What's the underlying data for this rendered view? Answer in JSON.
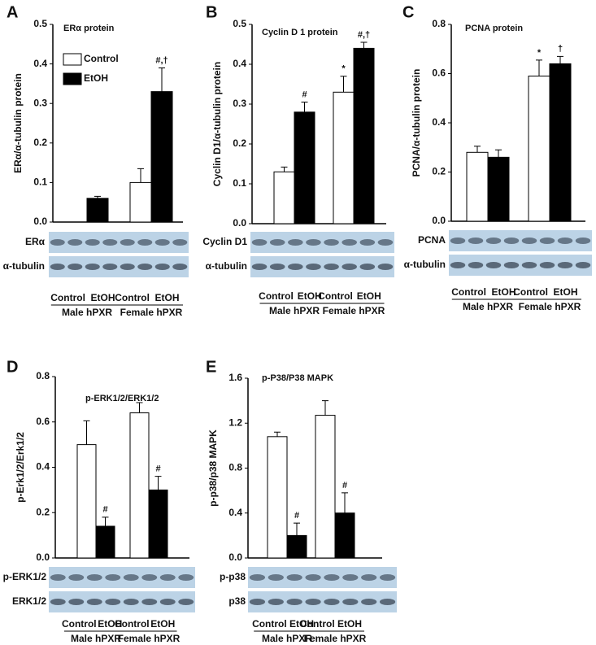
{
  "chart_data": [
    {
      "type": "bar",
      "label": "A",
      "title": "ERα protein",
      "ylabel": "ERα/α-tubulin protein",
      "categories": [
        "Male hPXR",
        "Female hPXR"
      ],
      "blot_labels": [
        "ERα",
        "α-tubulin"
      ],
      "legend": "top-left",
      "ylim": [
        0,
        0.5
      ],
      "yticks": [
        {
          "value": 0,
          "label": "0.0"
        },
        0.1,
        0.2,
        0.3,
        0.4,
        0.5
      ],
      "series": [
        {
          "name": "Control",
          "color": "#ffffff",
          "values": [
            null,
            0.1
          ],
          "errors": [
            null,
            0.035
          ],
          "annotations": [
            null,
            null
          ]
        },
        {
          "name": "EtOH",
          "color": "#000000",
          "values": [
            0.06,
            0.33
          ],
          "errors": [
            0.005,
            0.06
          ],
          "annotations": [
            null,
            "#,†"
          ]
        }
      ]
    },
    {
      "type": "bar",
      "label": "B",
      "title": "Cyclin D 1 protein",
      "ylabel": "Cyclin D1/α-tubulin protein",
      "categories": [
        "Male hPXR",
        "Female hPXR"
      ],
      "blot_labels": [
        "Cyclin D1",
        "α-tubulin"
      ],
      "ylim": [
        0,
        0.5
      ],
      "yticks": [
        {
          "value": 0,
          "label": "0.0"
        },
        0.1,
        0.2,
        0.3,
        0.4,
        0.5
      ],
      "series": [
        {
          "name": "Control",
          "color": "#ffffff",
          "values": [
            0.13,
            0.33
          ],
          "errors": [
            0.012,
            0.04
          ],
          "annotations": [
            null,
            "*"
          ]
        },
        {
          "name": "EtOH",
          "color": "#000000",
          "values": [
            0.28,
            0.44
          ],
          "errors": [
            0.025,
            0.015
          ],
          "annotations": [
            "#",
            "#,†"
          ]
        }
      ]
    },
    {
      "type": "bar",
      "label": "C",
      "title": "PCNA  protein",
      "ylabel": "PCNA/α-tubulin protein",
      "categories": [
        "Male hPXR",
        "Female hPXR"
      ],
      "blot_labels": [
        "PCNA",
        "α-tubulin"
      ],
      "ylim": [
        0,
        0.8
      ],
      "yticks": [
        {
          "value": 0,
          "label": "0.0"
        },
        0.2,
        0.4,
        0.6,
        0.8
      ],
      "series": [
        {
          "name": "Control",
          "color": "#ffffff",
          "values": [
            0.28,
            0.59
          ],
          "errors": [
            0.025,
            0.065
          ],
          "annotations": [
            null,
            "*"
          ]
        },
        {
          "name": "EtOH",
          "color": "#000000",
          "values": [
            0.26,
            0.64
          ],
          "errors": [
            0.03,
            0.03
          ],
          "annotations": [
            null,
            "†"
          ]
        }
      ]
    },
    {
      "type": "bar",
      "label": "D",
      "title": "p-ERK1/2/ERK1/2",
      "ylabel": "p-Erk1/2/Erk1/2",
      "categories": [
        "Male hPXR",
        "Female hPXR"
      ],
      "blot_labels": [
        "p-ERK1/2",
        "ERK1/2"
      ],
      "ylim": [
        0,
        0.8
      ],
      "yticks": [
        {
          "value": 0,
          "label": "0.0"
        },
        0.2,
        0.4,
        0.6,
        0.8
      ],
      "series": [
        {
          "name": "Control",
          "color": "#ffffff",
          "values": [
            0.5,
            0.64
          ],
          "errors": [
            0.105,
            0.045
          ],
          "annotations": [
            null,
            null
          ]
        },
        {
          "name": "EtOH",
          "color": "#000000",
          "values": [
            0.14,
            0.3
          ],
          "errors": [
            0.04,
            0.06
          ],
          "annotations": [
            "#",
            "#"
          ]
        }
      ]
    },
    {
      "type": "bar",
      "label": "E",
      "title": "p-P38/P38 MAPK",
      "ylabel": "p-p38/p38 MAPK",
      "categories": [
        "Male hPXR",
        "Female hPXR"
      ],
      "blot_labels": [
        "p-p38",
        "p38"
      ],
      "ylim": [
        0,
        1.6
      ],
      "yticks": [
        {
          "value": 0,
          "label": "0.0"
        },
        0.4,
        0.8,
        1.2,
        1.6
      ],
      "series": [
        {
          "name": "Control",
          "color": "#ffffff",
          "values": [
            1.08,
            1.27
          ],
          "errors": [
            0.04,
            0.13
          ],
          "annotations": [
            null,
            null
          ]
        },
        {
          "name": "EtOH",
          "color": "#000000",
          "values": [
            0.2,
            0.4
          ],
          "errors": [
            0.11,
            0.18
          ],
          "annotations": [
            "#",
            "#"
          ]
        }
      ]
    }
  ]
}
